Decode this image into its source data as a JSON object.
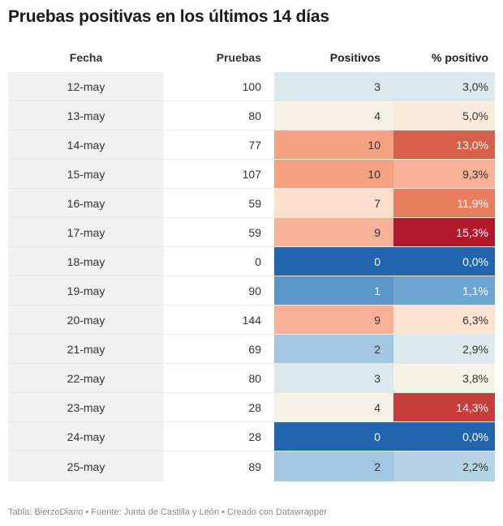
{
  "title": "Pruebas positivas en los últimos 14 días",
  "footer": "Tabla: BierzoDiario • Fuente: Junta de Castilla y León • Creado con Datawrapper",
  "chart_data": {
    "type": "table",
    "columns": [
      "Fecha",
      "Pruebas",
      "Positivos",
      "% positivo"
    ],
    "rows": [
      {
        "fecha": "12-may",
        "pruebas": "100",
        "positivos": "3",
        "pct": "3,0%",
        "pos_color": "#dbe8ee",
        "pct_color": "#dbe8ee",
        "pos_text": "#333333",
        "pct_text": "#333333"
      },
      {
        "fecha": "13-may",
        "pruebas": "80",
        "positivos": "4",
        "pct": "5,0%",
        "pos_color": "#f7f2e8",
        "pct_color": "#fbebdd",
        "pos_text": "#333333",
        "pct_text": "#333333"
      },
      {
        "fecha": "14-may",
        "pruebas": "77",
        "positivos": "10",
        "pct": "13,0%",
        "pos_color": "#f4a281",
        "pct_color": "#d7604b",
        "pos_text": "#333333",
        "pct_text": "#ffffff"
      },
      {
        "fecha": "15-may",
        "pruebas": "107",
        "positivos": "10",
        "pct": "9,3%",
        "pos_color": "#f4a281",
        "pct_color": "#f7b196",
        "pos_text": "#333333",
        "pct_text": "#333333"
      },
      {
        "fecha": "16-may",
        "pruebas": "59",
        "positivos": "7",
        "pct": "11,9%",
        "pos_color": "#fbdecb",
        "pct_color": "#e77e5f",
        "pos_text": "#333333",
        "pct_text": "#ffffff"
      },
      {
        "fecha": "17-may",
        "pruebas": "59",
        "positivos": "9",
        "pct": "15,3%",
        "pos_color": "#f7b196",
        "pct_color": "#b2182b",
        "pos_text": "#333333",
        "pct_text": "#ffffff"
      },
      {
        "fecha": "18-may",
        "pruebas": "0",
        "positivos": "0",
        "pct": "0,0%",
        "pos_color": "#2166ac",
        "pct_color": "#2166ac",
        "pos_text": "#ffffff",
        "pct_text": "#ffffff"
      },
      {
        "fecha": "19-may",
        "pruebas": "90",
        "positivos": "1",
        "pct": "1,1%",
        "pos_color": "#5a97c8",
        "pct_color": "#6ca6d1",
        "pos_text": "#ffffff",
        "pct_text": "#ffffff"
      },
      {
        "fecha": "20-may",
        "pruebas": "144",
        "positivos": "9",
        "pct": "6,3%",
        "pos_color": "#f7b196",
        "pct_color": "#fbe2d1",
        "pos_text": "#333333",
        "pct_text": "#333333"
      },
      {
        "fecha": "21-may",
        "pruebas": "69",
        "positivos": "2",
        "pct": "2,9%",
        "pos_color": "#a3c7e1",
        "pct_color": "#dbe8ee",
        "pos_text": "#333333",
        "pct_text": "#333333"
      },
      {
        "fecha": "22-may",
        "pruebas": "80",
        "positivos": "3",
        "pct": "3,8%",
        "pos_color": "#dbe8ee",
        "pct_color": "#f4f3e6",
        "pos_text": "#333333",
        "pct_text": "#333333"
      },
      {
        "fecha": "23-may",
        "pruebas": "28",
        "positivos": "4",
        "pct": "14,3%",
        "pos_color": "#f7f2e8",
        "pct_color": "#c63d3b",
        "pos_text": "#333333",
        "pct_text": "#ffffff"
      },
      {
        "fecha": "24-may",
        "pruebas": "28",
        "positivos": "0",
        "pct": "0,0%",
        "pos_color": "#2166ac",
        "pct_color": "#2166ac",
        "pos_text": "#ffffff",
        "pct_text": "#ffffff"
      },
      {
        "fecha": "25-may",
        "pruebas": "89",
        "positivos": "2",
        "pct": "2,2%",
        "pos_color": "#a3c7e1",
        "pct_color": "#b5d3e7",
        "pos_text": "#333333",
        "pct_text": "#333333"
      }
    ]
  }
}
